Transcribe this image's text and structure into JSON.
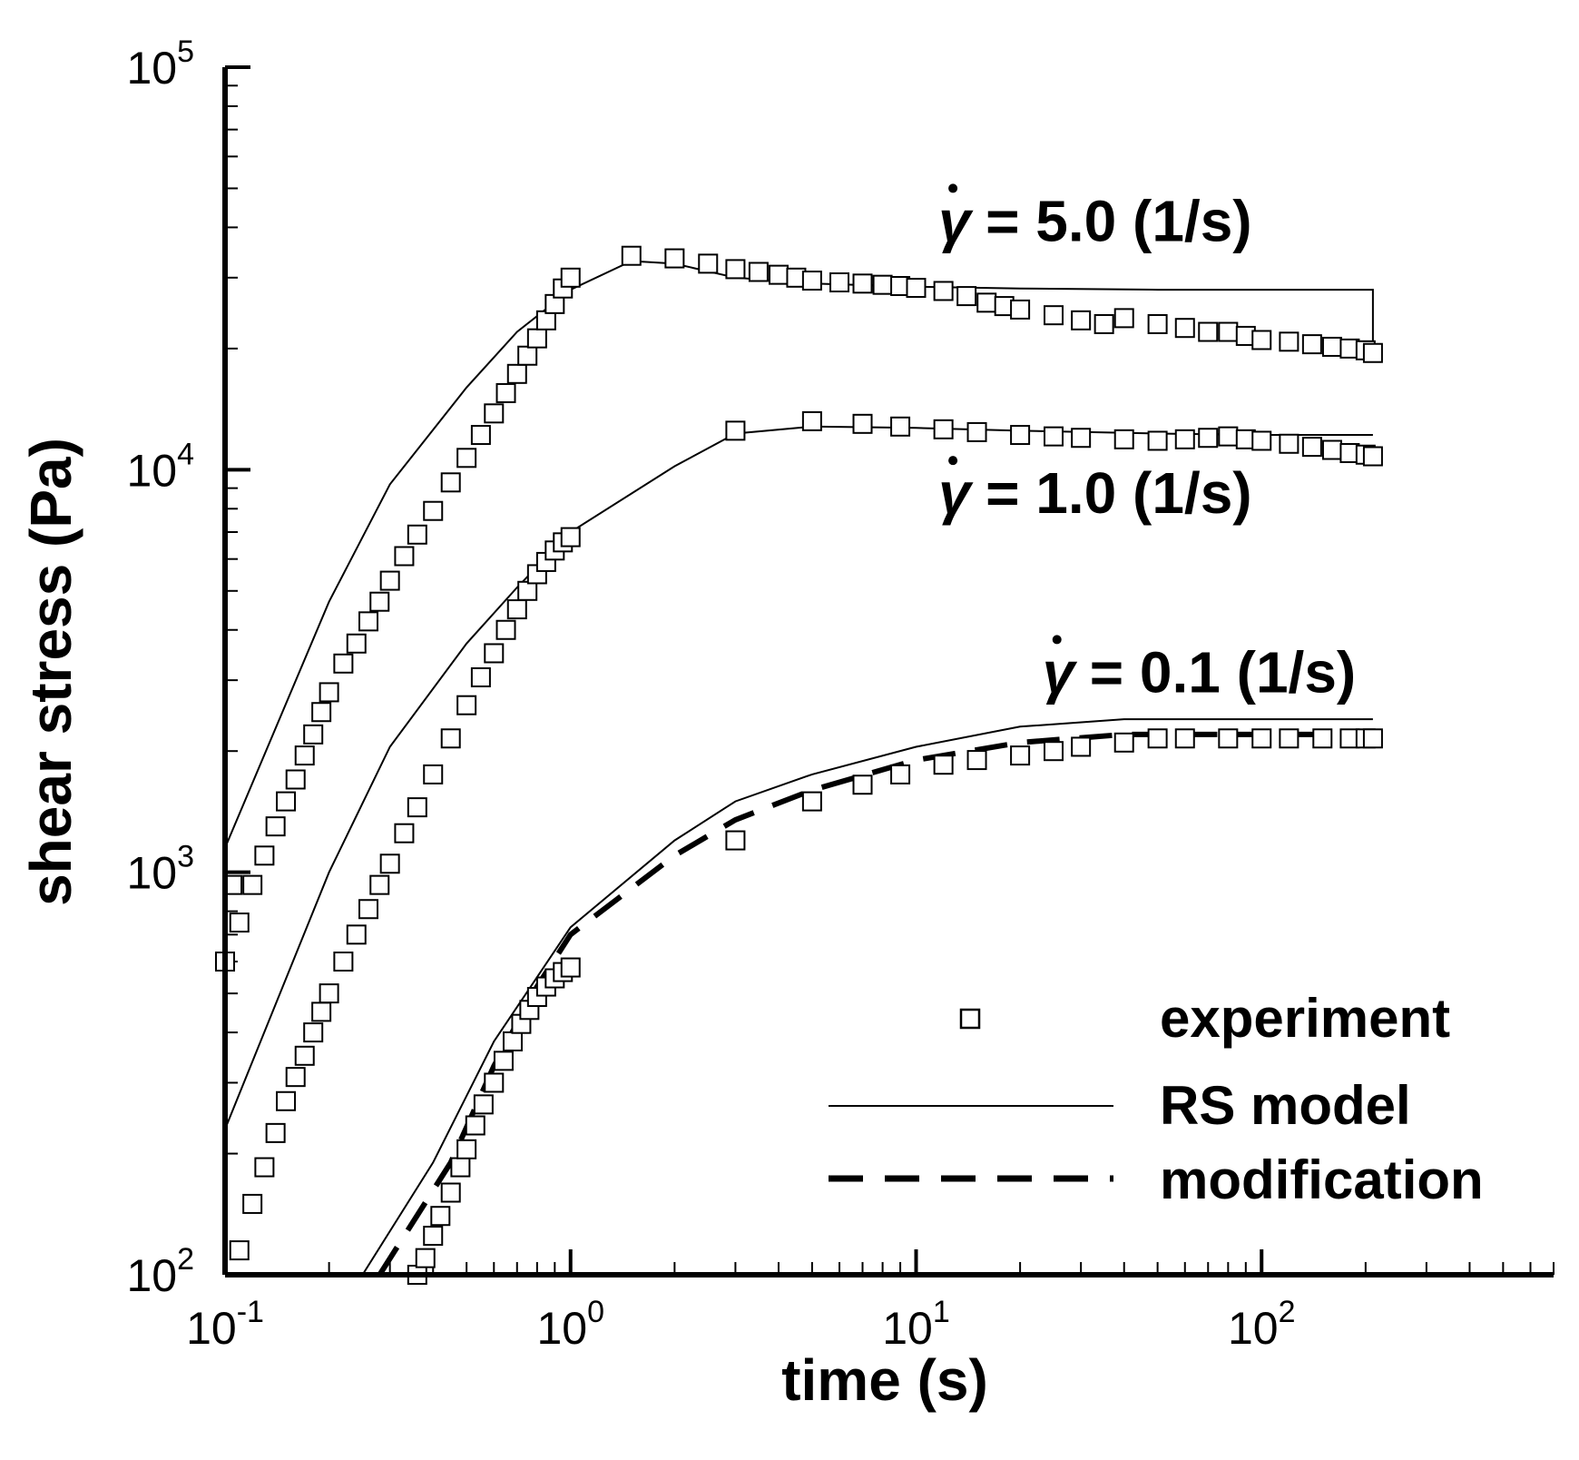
{
  "chart_data": {
    "type": "line",
    "xlabel": "time (s)",
    "ylabel": "shear stress (Pa)",
    "xscale": "log",
    "yscale": "log",
    "xlim": [
      0.1,
      700
    ],
    "ylim": [
      100,
      100000
    ],
    "x_ticks": [
      {
        "base": "10",
        "exp": "-1",
        "value": 0.1
      },
      {
        "base": "10",
        "exp": "0",
        "value": 1
      },
      {
        "base": "10",
        "exp": "1",
        "value": 10
      },
      {
        "base": "10",
        "exp": "2",
        "value": 100
      }
    ],
    "y_ticks": [
      {
        "base": "10",
        "exp": "2",
        "value": 100
      },
      {
        "base": "10",
        "exp": "3",
        "value": 1000
      },
      {
        "base": "10",
        "exp": "4",
        "value": 10000
      },
      {
        "base": "10",
        "exp": "5",
        "value": 100000
      }
    ],
    "annotations": [
      {
        "symbol": "γ",
        "text": "= 5.0 (1/s)",
        "x": 20,
        "y": 37000
      },
      {
        "symbol": "γ",
        "text": "= 1.0 (1/s)",
        "x": 20,
        "y": 7800
      },
      {
        "symbol": "γ",
        "text": "= 0.1 (1/s)",
        "x": 40,
        "y": 2800
      }
    ],
    "legend": {
      "position": "bottom-right",
      "entries": [
        {
          "label": "experiment",
          "style": "square-marker"
        },
        {
          "label": "RS model",
          "style": "solid-line"
        },
        {
          "label": "modification",
          "style": "dashed-line"
        }
      ]
    },
    "series": [
      {
        "name": "RS model, rate 5.0",
        "style": "solid",
        "x": [
          0.1,
          0.2,
          0.3,
          0.5,
          0.7,
          1.0,
          1.5,
          2.0,
          3.0,
          5.0,
          10,
          20,
          50,
          100,
          200,
          210,
          210
        ],
        "y": [
          1150,
          4700,
          9200,
          16000,
          22000,
          28000,
          33000,
          32500,
          30000,
          29000,
          28500,
          28200,
          28000,
          28000,
          28000,
          28000,
          20000
        ]
      },
      {
        "name": "RS model, rate 1.0",
        "style": "solid",
        "x": [
          0.1,
          0.2,
          0.3,
          0.5,
          0.7,
          1.0,
          2.0,
          3.0,
          5.0,
          10,
          20,
          50,
          100,
          210
        ],
        "y": [
          230,
          1000,
          2050,
          3700,
          5100,
          7000,
          10200,
          12300,
          12800,
          12700,
          12500,
          12300,
          12200,
          12200
        ]
      },
      {
        "name": "RS model, rate 0.1",
        "style": "solid",
        "x": [
          0.25,
          0.4,
          0.6,
          1.0,
          2.0,
          3.0,
          5.0,
          10,
          20,
          40,
          100,
          210
        ],
        "y": [
          100,
          190,
          380,
          730,
          1200,
          1500,
          1750,
          2050,
          2300,
          2400,
          2400,
          2400
        ]
      },
      {
        "name": "modification, rate 0.1",
        "style": "dashed",
        "x": [
          0.28,
          0.45,
          0.6,
          0.8,
          1.0,
          2.0,
          3.0,
          5.0,
          10,
          20,
          40,
          100,
          210
        ],
        "y": [
          100,
          190,
          330,
          520,
          700,
          1100,
          1350,
          1600,
          1900,
          2100,
          2200,
          2200,
          2200
        ]
      },
      {
        "name": "experiment, rate 5.0",
        "style": "markers",
        "x": [
          0.1,
          0.105,
          0.11,
          0.12,
          0.13,
          0.14,
          0.15,
          0.16,
          0.17,
          0.18,
          0.19,
          0.2,
          0.22,
          0.24,
          0.26,
          0.28,
          0.3,
          0.33,
          0.36,
          0.4,
          0.45,
          0.5,
          0.55,
          0.6,
          0.65,
          0.7,
          0.75,
          0.8,
          0.85,
          0.9,
          0.95,
          1.0,
          1.5,
          2.0,
          2.5,
          3.0,
          3.5,
          4.0,
          4.5,
          5.0,
          6.0,
          7.0,
          8.0,
          9.0,
          10,
          12,
          14,
          16,
          18,
          20,
          25,
          30,
          35,
          40,
          50,
          60,
          70,
          80,
          90,
          100,
          120,
          140,
          160,
          180,
          200,
          210
        ],
        "y": [
          600,
          930,
          750,
          930,
          1100,
          1300,
          1500,
          1700,
          1950,
          2200,
          2500,
          2800,
          3300,
          3700,
          4200,
          4700,
          5300,
          6100,
          6900,
          7900,
          9300,
          10700,
          12200,
          13800,
          15500,
          17300,
          19200,
          21200,
          23500,
          25800,
          28200,
          30000,
          34000,
          33500,
          32500,
          31500,
          31000,
          30500,
          30000,
          29500,
          29200,
          29000,
          28800,
          28600,
          28300,
          27800,
          27000,
          26000,
          25500,
          25000,
          24200,
          23500,
          23000,
          23800,
          23000,
          22500,
          22000,
          22000,
          21500,
          21000,
          20800,
          20500,
          20200,
          20000,
          19800,
          19500
        ]
      },
      {
        "name": "experiment, rate 1.0",
        "style": "markers",
        "x": [
          0.11,
          0.12,
          0.13,
          0.14,
          0.15,
          0.16,
          0.17,
          0.18,
          0.19,
          0.2,
          0.22,
          0.24,
          0.26,
          0.28,
          0.3,
          0.33,
          0.36,
          0.4,
          0.45,
          0.5,
          0.55,
          0.6,
          0.65,
          0.7,
          0.75,
          0.8,
          0.85,
          0.9,
          0.95,
          1.0,
          3.0,
          5.0,
          7.0,
          9.0,
          12,
          15,
          20,
          25,
          30,
          40,
          50,
          60,
          70,
          80,
          90,
          100,
          120,
          140,
          160,
          180,
          200,
          210
        ],
        "y": [
          115,
          150,
          185,
          225,
          270,
          310,
          350,
          400,
          450,
          500,
          600,
          700,
          810,
          930,
          1050,
          1250,
          1450,
          1750,
          2150,
          2600,
          3050,
          3500,
          4000,
          4500,
          5000,
          5500,
          5900,
          6300,
          6600,
          6800,
          12500,
          13200,
          13000,
          12800,
          12600,
          12400,
          12200,
          12100,
          12000,
          11900,
          11800,
          11900,
          12000,
          12100,
          11900,
          11800,
          11600,
          11400,
          11200,
          11000,
          10900,
          10800
        ]
      },
      {
        "name": "experiment, rate 0.1",
        "style": "markers",
        "x": [
          0.36,
          0.38,
          0.4,
          0.42,
          0.45,
          0.48,
          0.5,
          0.53,
          0.56,
          0.6,
          0.64,
          0.68,
          0.72,
          0.76,
          0.8,
          0.85,
          0.9,
          0.95,
          1.0,
          3.0,
          5.0,
          7.0,
          9.0,
          12,
          15,
          20,
          25,
          30,
          40,
          50,
          60,
          80,
          100,
          120,
          150,
          180,
          200,
          210
        ],
        "y": [
          100,
          110,
          125,
          140,
          160,
          185,
          205,
          235,
          265,
          300,
          340,
          380,
          420,
          455,
          490,
          520,
          545,
          565,
          580,
          1200,
          1500,
          1650,
          1750,
          1850,
          1900,
          1950,
          2000,
          2050,
          2100,
          2150,
          2150,
          2150,
          2150,
          2150,
          2150,
          2150,
          2150,
          2150
        ]
      }
    ]
  }
}
